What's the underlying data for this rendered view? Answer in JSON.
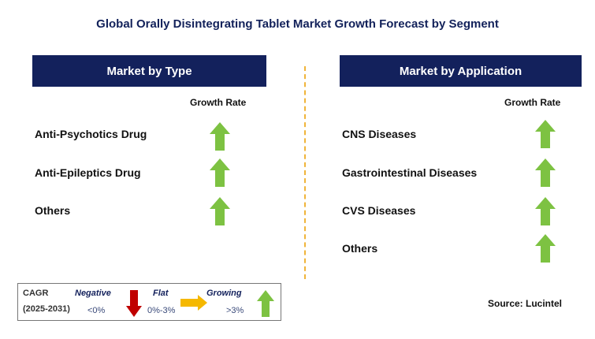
{
  "title": "Global Orally Disintegrating Tablet Market Growth Forecast by Segment",
  "colors": {
    "header_bg": "#13215c",
    "growing": "#7dc242",
    "negative": "#c00000",
    "flat": "#f5b800",
    "divider": "#f0b43a"
  },
  "left_panel": {
    "header": "Market by Type",
    "column_header": "Growth Rate",
    "rows": [
      {
        "label": "Anti-Psychotics Drug",
        "trend": "growing"
      },
      {
        "label": "Anti-Epileptics Drug",
        "trend": "growing"
      },
      {
        "label": "Others",
        "trend": "growing"
      }
    ]
  },
  "right_panel": {
    "header": "Market by Application",
    "column_header": "Growth Rate",
    "rows": [
      {
        "label": "CNS Diseases",
        "trend": "growing"
      },
      {
        "label": "Gastrointestinal Diseases",
        "trend": "growing"
      },
      {
        "label": "CVS Diseases",
        "trend": "growing"
      },
      {
        "label": "Others",
        "trend": "growing"
      }
    ]
  },
  "legend": {
    "cagr_label": "CAGR",
    "period": "(2025-2031)",
    "negative_label": "Negative",
    "negative_range": "<0%",
    "flat_label": "Flat",
    "flat_range": "0%-3%",
    "growing_label": "Growing",
    "growing_range": ">3%"
  },
  "source": "Source: Lucintel"
}
